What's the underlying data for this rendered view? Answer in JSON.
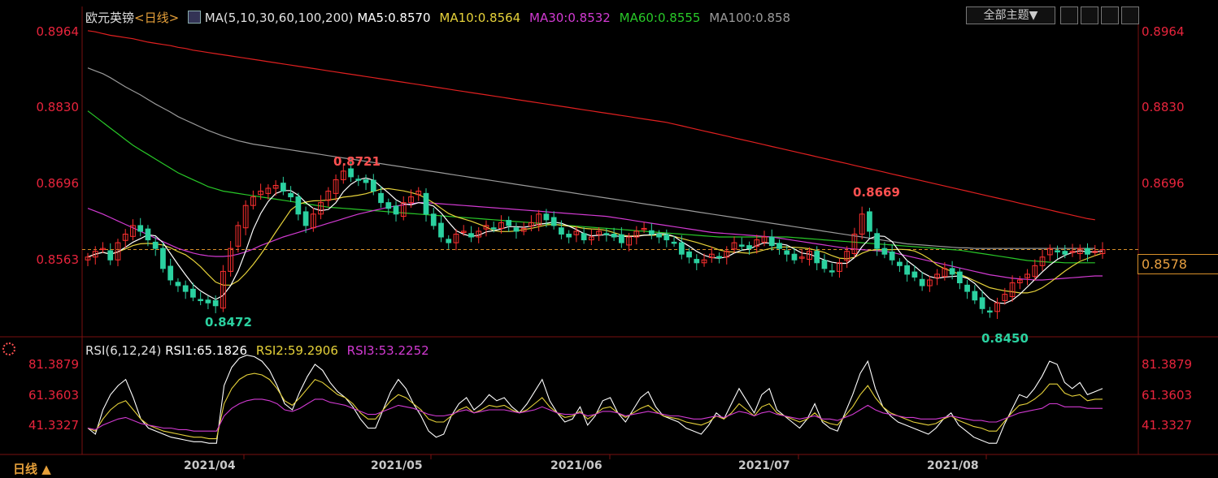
{
  "header": {
    "symbol": "欧元英镑",
    "period": "<日线>",
    "ma_label": "MA(5,10,30,60,100,200)",
    "ma5": "MA5:0.8570",
    "ma10": "MA10:0.8564",
    "ma30": "MA30:0.8532",
    "ma60": "MA60:0.8555",
    "ma100": "MA100:0.858",
    "theme_button": "全部主题▼"
  },
  "price_axis": {
    "ticks": [
      "0.8964",
      "0.8830",
      "0.8696",
      "0.8563"
    ],
    "current": "0.8578"
  },
  "annotations": {
    "high1": "0.8721",
    "low1": "0.8472",
    "high2": "0.8669",
    "low2": "0.8450"
  },
  "rsi": {
    "label": "RSI(6,12,24)",
    "rsi1": "RSI1:65.1826",
    "rsi2": "RSI2:59.2906",
    "rsi3": "RSI3:53.2252",
    "ticks": [
      "81.3879",
      "61.3603",
      "41.3327"
    ]
  },
  "x_axis": [
    "2021/04",
    "2021/05",
    "2021/06",
    "2021/07",
    "2021/08"
  ],
  "footer": {
    "period_label": "日线 ▲"
  },
  "colors": {
    "up": "#ff3030",
    "down": "#2bd1a0",
    "ma5": "#ffffff",
    "ma10": "#e6d23a",
    "ma30": "#d23ad2",
    "ma60": "#28c828",
    "ma100": "#9a9a9a",
    "ma200": "#e02020"
  },
  "chart_data": {
    "type": "candlestick",
    "ylim": [
      0.844,
      0.8964
    ],
    "rsi_ylim": [
      31.3,
      91.4
    ],
    "x_first_date": "2021-03-15",
    "x_last_date": "2021-08-26",
    "ohlc_close": [
      0.8565,
      0.8575,
      0.858,
      0.856,
      0.859,
      0.8605,
      0.862,
      0.861,
      0.8595,
      0.858,
      0.8545,
      0.8525,
      0.8515,
      0.8505,
      0.8495,
      0.849,
      0.8485,
      0.848,
      0.854,
      0.858,
      0.862,
      0.8655,
      0.867,
      0.868,
      0.8685,
      0.869,
      0.868,
      0.867,
      0.864,
      0.862,
      0.864,
      0.866,
      0.868,
      0.87,
      0.8715,
      0.8705,
      0.87,
      0.8695,
      0.868,
      0.866,
      0.865,
      0.864,
      0.866,
      0.867,
      0.868,
      0.864,
      0.862,
      0.86,
      0.859,
      0.8605,
      0.861,
      0.86,
      0.861,
      0.862,
      0.8615,
      0.8625,
      0.862,
      0.861,
      0.8615,
      0.8625,
      0.864,
      0.863,
      0.862,
      0.8605,
      0.86,
      0.861,
      0.8595,
      0.86,
      0.861,
      0.8605,
      0.86,
      0.859,
      0.86,
      0.861,
      0.8615,
      0.8605,
      0.86,
      0.8595,
      0.859,
      0.857,
      0.8565,
      0.8555,
      0.856,
      0.857,
      0.8565,
      0.8575,
      0.859,
      0.8585,
      0.858,
      0.8595,
      0.86,
      0.8585,
      0.858,
      0.857,
      0.856,
      0.8565,
      0.8575,
      0.8555,
      0.8545,
      0.854,
      0.8555,
      0.8575,
      0.8605,
      0.864,
      0.861,
      0.858,
      0.857,
      0.856,
      0.855,
      0.8535,
      0.853,
      0.8515,
      0.8525,
      0.8535,
      0.8545,
      0.8535,
      0.852,
      0.8505,
      0.849,
      0.8475,
      0.847,
      0.8485,
      0.85,
      0.852,
      0.8525,
      0.8535,
      0.855,
      0.8565,
      0.858,
      0.8575,
      0.857,
      0.8575,
      0.858,
      0.857,
      0.8575,
      0.8578
    ],
    "ma200": [
      0.896,
      0.8958,
      0.8955,
      0.8952,
      0.895,
      0.8948,
      0.8946,
      0.8943,
      0.894,
      0.8938,
      0.8936,
      0.8934,
      0.8931,
      0.8929,
      0.8926,
      0.8924,
      0.8922,
      0.892,
      0.8918,
      0.8916,
      0.8914,
      0.8912,
      0.891,
      0.8908,
      0.8906,
      0.8904,
      0.8902,
      0.89,
      0.8898,
      0.8896,
      0.8894,
      0.8892,
      0.889,
      0.8888,
      0.8886,
      0.8884,
      0.8882,
      0.888,
      0.8878,
      0.8876,
      0.8874,
      0.8872,
      0.887,
      0.8868,
      0.8866,
      0.8864,
      0.8862,
      0.886,
      0.8858,
      0.8856,
      0.8854,
      0.8852,
      0.885,
      0.8848,
      0.8846,
      0.8844,
      0.8842,
      0.884,
      0.8838,
      0.8836,
      0.8834,
      0.8832,
      0.883,
      0.8828,
      0.8826,
      0.8824,
      0.8822,
      0.882,
      0.8818,
      0.8816,
      0.8814,
      0.8812,
      0.881,
      0.8808,
      0.8806,
      0.8804,
      0.8802,
      0.88,
      0.8797,
      0.8794,
      0.8791,
      0.8788,
      0.8785,
      0.8782,
      0.8779,
      0.8776,
      0.8773,
      0.877,
      0.8767,
      0.8764,
      0.8761,
      0.8758,
      0.8755,
      0.8752,
      0.8749,
      0.8746,
      0.8743,
      0.874,
      0.8737,
      0.8734,
      0.8731,
      0.8728,
      0.8725,
      0.8722,
      0.8719,
      0.8716,
      0.8713,
      0.871,
      0.8707,
      0.8704,
      0.8701,
      0.8698,
      0.8695,
      0.8692,
      0.8689,
      0.8686,
      0.8683,
      0.868,
      0.8677,
      0.8674,
      0.8671,
      0.8668,
      0.8665,
      0.8662,
      0.8659,
      0.8656,
      0.8653,
      0.865,
      0.8647,
      0.8644,
      0.8641,
      0.8638,
      0.8635,
      0.8632,
      0.863
    ],
    "ma100": [
      0.8895,
      0.889,
      0.8885,
      0.8878,
      0.887,
      0.8862,
      0.8855,
      0.8848,
      0.884,
      0.8832,
      0.8825,
      0.8818,
      0.881,
      0.8804,
      0.8798,
      0.8792,
      0.8786,
      0.8781,
      0.8776,
      0.8772,
      0.8768,
      0.8765,
      0.8762,
      0.876,
      0.8758,
      0.8756,
      0.8754,
      0.8752,
      0.875,
      0.8748,
      0.8746,
      0.8744,
      0.8742,
      0.874,
      0.8738,
      0.8736,
      0.8734,
      0.8732,
      0.873,
      0.8728,
      0.8726,
      0.8724,
      0.8722,
      0.872,
      0.8718,
      0.8716,
      0.8714,
      0.8712,
      0.871,
      0.8708,
      0.8706,
      0.8704,
      0.8702,
      0.87,
      0.8698,
      0.8696,
      0.8694,
      0.8692,
      0.869,
      0.8688,
      0.8686,
      0.8684,
      0.8682,
      0.868,
      0.8678,
      0.8676,
      0.8674,
      0.8672,
      0.867,
      0.8668,
      0.8666,
      0.8664,
      0.8662,
      0.866,
      0.8658,
      0.8656,
      0.8654,
      0.8652,
      0.865,
      0.8648,
      0.8646,
      0.8644,
      0.8642,
      0.864,
      0.8638,
      0.8636,
      0.8634,
      0.8632,
      0.863,
      0.8628,
      0.8626,
      0.8624,
      0.8622,
      0.862,
      0.8618,
      0.8616,
      0.8614,
      0.8612,
      0.861,
      0.8608,
      0.8606,
      0.8604,
      0.8602,
      0.86,
      0.8598,
      0.8596,
      0.8594,
      0.8592,
      0.859,
      0.8588,
      0.8587,
      0.8586,
      0.8585,
      0.8584,
      0.8583,
      0.8582,
      0.8581,
      0.8581,
      0.858,
      0.858,
      0.858,
      0.858,
      0.858,
      0.858,
      0.858,
      0.858,
      0.858,
      0.858,
      0.858,
      0.858,
      0.858,
      0.858,
      0.858,
      0.858,
      0.858
    ],
    "ma60": [
      0.882,
      0.881,
      0.88,
      0.879,
      0.878,
      0.877,
      0.876,
      0.8752,
      0.8744,
      0.8736,
      0.8728,
      0.872,
      0.8712,
      0.8706,
      0.87,
      0.8694,
      0.8688,
      0.8684,
      0.868,
      0.8678,
      0.8676,
      0.8674,
      0.8672,
      0.867,
      0.8668,
      0.8666,
      0.8664,
      0.8662,
      0.866,
      0.8658,
      0.8656,
      0.8654,
      0.8652,
      0.8651,
      0.865,
      0.8649,
      0.8648,
      0.8647,
      0.8646,
      0.8645,
      0.8644,
      0.8643,
      0.8642,
      0.8641,
      0.864,
      0.8639,
      0.8638,
      0.8637,
      0.8636,
      0.8635,
      0.8634,
      0.8633,
      0.8632,
      0.8631,
      0.863,
      0.8629,
      0.8628,
      0.8627,
      0.8626,
      0.8625,
      0.8624,
      0.8623,
      0.8622,
      0.8621,
      0.862,
      0.8619,
      0.8618,
      0.8617,
      0.8616,
      0.8615,
      0.8614,
      0.8613,
      0.8612,
      0.8611,
      0.861,
      0.8609,
      0.8608,
      0.8607,
      0.8606,
      0.8605,
      0.8604,
      0.8603,
      0.8602,
      0.8601,
      0.86,
      0.86,
      0.86,
      0.86,
      0.86,
      0.86,
      0.86,
      0.86,
      0.86,
      0.86,
      0.8599,
      0.8598,
      0.8597,
      0.8596,
      0.8595,
      0.8594,
      0.8593,
      0.8592,
      0.8591,
      0.859,
      0.8589,
      0.8588,
      0.8587,
      0.8586,
      0.8585,
      0.8584,
      0.8583,
      0.8582,
      0.8581,
      0.858,
      0.8579,
      0.8578,
      0.8577,
      0.8575,
      0.8573,
      0.8571,
      0.8569,
      0.8567,
      0.8565,
      0.8563,
      0.8561,
      0.8559,
      0.8558,
      0.8557,
      0.8556,
      0.8556,
      0.8555,
      0.8555,
      0.8555,
      0.8555,
      0.8555
    ],
    "ma30": [
      0.865,
      0.8645,
      0.864,
      0.8634,
      0.8628,
      0.8622,
      0.8616,
      0.861,
      0.8604,
      0.8598,
      0.8592,
      0.8586,
      0.858,
      0.8576,
      0.8572,
      0.8569,
      0.8567,
      0.8566,
      0.8566,
      0.8567,
      0.857,
      0.8574,
      0.8579,
      0.8585,
      0.859,
      0.8595,
      0.86,
      0.8604,
      0.8608,
      0.8612,
      0.8616,
      0.862,
      0.8624,
      0.8628,
      0.8632,
      0.8636,
      0.864,
      0.8643,
      0.8646,
      0.8649,
      0.8652,
      0.8654,
      0.8656,
      0.8658,
      0.866,
      0.866,
      0.8659,
      0.8658,
      0.8657,
      0.8656,
      0.8655,
      0.8654,
      0.8653,
      0.8652,
      0.8651,
      0.865,
      0.8649,
      0.8648,
      0.8647,
      0.8646,
      0.8645,
      0.8644,
      0.8643,
      0.8642,
      0.8641,
      0.864,
      0.8639,
      0.8638,
      0.8637,
      0.8636,
      0.8634,
      0.8632,
      0.863,
      0.8628,
      0.8626,
      0.8624,
      0.8622,
      0.862,
      0.8618,
      0.8616,
      0.8614,
      0.8612,
      0.861,
      0.8608,
      0.8607,
      0.8606,
      0.8605,
      0.8604,
      0.8603,
      0.8602,
      0.8601,
      0.86,
      0.8598,
      0.8596,
      0.8594,
      0.8592,
      0.859,
      0.8588,
      0.8586,
      0.8584,
      0.8582,
      0.858,
      0.8579,
      0.8578,
      0.8577,
      0.8576,
      0.8575,
      0.8573,
      0.857,
      0.8567,
      0.8564,
      0.8561,
      0.8558,
      0.8555,
      0.8552,
      0.8549,
      0.8546,
      0.8543,
      0.854,
      0.8537,
      0.8534,
      0.8532,
      0.853,
      0.8528,
      0.8527,
      0.8526,
      0.8525,
      0.8525,
      0.8526,
      0.8527,
      0.8528,
      0.8529,
      0.853,
      0.8531,
      0.8532,
      0.8532
    ],
    "rsi_series": [
      {
        "name": "RSI1",
        "values": [
          40,
          36,
          52,
          62,
          68,
          72,
          60,
          46,
          40,
          38,
          36,
          34,
          33,
          32,
          31,
          31,
          30,
          30,
          68,
          80,
          86,
          88,
          87,
          84,
          78,
          68,
          56,
          52,
          64,
          74,
          82,
          78,
          70,
          64,
          60,
          54,
          46,
          40,
          40,
          52,
          64,
          72,
          66,
          56,
          48,
          38,
          34,
          36,
          48,
          56,
          60,
          52,
          56,
          62,
          58,
          60,
          54,
          50,
          56,
          64,
          72,
          58,
          50,
          44,
          46,
          54,
          42,
          48,
          58,
          60,
          50,
          44,
          52,
          60,
          64,
          54,
          48,
          46,
          44,
          40,
          38,
          36,
          42,
          50,
          46,
          56,
          66,
          58,
          50,
          62,
          66,
          52,
          48,
          44,
          40,
          46,
          56,
          44,
          40,
          38,
          50,
          62,
          76,
          84,
          66,
          54,
          48,
          44,
          42,
          40,
          38,
          36,
          40,
          46,
          50,
          42,
          38,
          34,
          32,
          30,
          30,
          42,
          52,
          62,
          60,
          66,
          74,
          84,
          82,
          70,
          66,
          70,
          62,
          64,
          66
        ],
        "color": "#ffffff"
      },
      {
        "name": "RSI2",
        "values": [
          40,
          38,
          46,
          52,
          56,
          58,
          52,
          46,
          42,
          40,
          38,
          37,
          36,
          35,
          34,
          34,
          33,
          33,
          56,
          66,
          72,
          75,
          76,
          75,
          72,
          66,
          58,
          55,
          60,
          66,
          72,
          70,
          66,
          62,
          60,
          56,
          50,
          46,
          46,
          52,
          58,
          62,
          60,
          56,
          52,
          46,
          44,
          44,
          48,
          52,
          54,
          50,
          52,
          55,
          54,
          55,
          52,
          50,
          52,
          56,
          60,
          54,
          50,
          47,
          48,
          51,
          46,
          49,
          53,
          54,
          50,
          47,
          50,
          53,
          55,
          51,
          48,
          47,
          46,
          44,
          43,
          42,
          44,
          48,
          46,
          50,
          56,
          52,
          48,
          54,
          56,
          50,
          48,
          46,
          44,
          46,
          50,
          45,
          43,
          42,
          48,
          54,
          62,
          68,
          60,
          54,
          50,
          48,
          46,
          44,
          43,
          42,
          43,
          46,
          48,
          45,
          43,
          41,
          40,
          38,
          38,
          44,
          50,
          55,
          56,
          59,
          63,
          69,
          69,
          63,
          61,
          62,
          58,
          59,
          59
        ],
        "color": "#e6d23a"
      },
      {
        "name": "RSI3",
        "values": [
          40,
          39,
          42,
          44,
          46,
          47,
          45,
          43,
          42,
          41,
          40,
          40,
          39,
          39,
          38,
          38,
          38,
          38,
          48,
          53,
          56,
          58,
          59,
          59,
          58,
          56,
          52,
          51,
          53,
          56,
          59,
          59,
          57,
          56,
          55,
          53,
          51,
          49,
          49,
          51,
          53,
          55,
          54,
          53,
          51,
          49,
          48,
          48,
          49,
          51,
          52,
          50,
          51,
          52,
          52,
          52,
          51,
          50,
          51,
          52,
          54,
          52,
          50,
          49,
          49,
          50,
          48,
          49,
          51,
          51,
          50,
          48,
          49,
          50,
          51,
          50,
          49,
          48,
          48,
          47,
          46,
          46,
          47,
          48,
          47,
          49,
          51,
          50,
          48,
          50,
          51,
          49,
          48,
          47,
          46,
          47,
          48,
          46,
          46,
          45,
          47,
          49,
          52,
          55,
          52,
          50,
          49,
          48,
          47,
          47,
          46,
          46,
          46,
          47,
          48,
          47,
          46,
          45,
          45,
          44,
          44,
          46,
          48,
          50,
          51,
          52,
          53,
          56,
          56,
          54,
          54,
          54,
          53,
          53,
          53
        ],
        "color": "#d23ad2"
      }
    ]
  }
}
